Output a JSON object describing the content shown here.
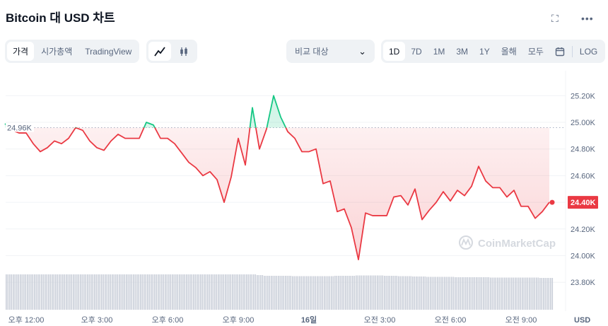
{
  "header": {
    "title": "Bitcoin 대 USD 차트",
    "fullscreen_icon": "fullscreen-icon",
    "more_icon": "more-icon"
  },
  "toolbar": {
    "view_tabs": [
      {
        "label": "가격",
        "active": true
      },
      {
        "label": "시가총액"
      },
      {
        "label": "TradingView"
      }
    ],
    "chart_types": [
      {
        "icon": "line-chart-icon",
        "active": true
      },
      {
        "icon": "candlestick-icon"
      }
    ],
    "compare": {
      "label": "비교 대상"
    },
    "ranges": [
      {
        "label": "1D",
        "active": true
      },
      {
        "label": "7D"
      },
      {
        "label": "1M"
      },
      {
        "label": "3M"
      },
      {
        "label": "1Y"
      },
      {
        "label": "올해"
      },
      {
        "label": "모두"
      }
    ],
    "calendar_icon": "calendar-icon",
    "log_label": "LOG"
  },
  "watermark": "CoinMarketCap",
  "chart_data": {
    "type": "line",
    "currency": "USD",
    "baseline": 24.96,
    "baseline_label": "24.96K",
    "current_label": "24.40K",
    "ylim": [
      23.7,
      25.3
    ],
    "yticks": [
      "25.20K",
      "25.00K",
      "24.80K",
      "24.60K",
      "24.40K",
      "24.20K",
      "24.00K",
      "23.80K"
    ],
    "ytick_values": [
      25.2,
      25.0,
      24.8,
      24.6,
      24.4,
      24.2,
      24.0,
      23.8
    ],
    "xticks": [
      "오후 12:00",
      "오후 3:00",
      "오후 6:00",
      "오후 9:00",
      "16일",
      "오전 3:00",
      "오전 6:00",
      "오전 9:00"
    ],
    "colors": {
      "up": "#16c784",
      "down": "#ea3943",
      "volume": "#c9ced8"
    },
    "grid": true,
    "x": [
      "11:06",
      "11:24",
      "11:42",
      "12:00",
      "12:18",
      "12:36",
      "12:54",
      "13:12",
      "13:30",
      "13:48",
      "14:06",
      "14:24",
      "14:42",
      "15:00",
      "15:18",
      "15:36",
      "15:54",
      "16:12",
      "16:30",
      "16:48",
      "17:06",
      "17:24",
      "17:42",
      "18:00",
      "18:18",
      "18:36",
      "18:54",
      "19:12",
      "19:30",
      "19:48",
      "20:06",
      "20:24",
      "20:42",
      "21:00",
      "21:18",
      "21:36",
      "21:54",
      "22:12",
      "22:30",
      "22:48",
      "23:06",
      "23:24",
      "23:42",
      "00:00",
      "00:18",
      "00:36",
      "00:54",
      "01:12",
      "01:30",
      "01:48",
      "02:06",
      "02:24",
      "02:42",
      "03:00",
      "03:18",
      "03:36",
      "03:54",
      "04:12",
      "04:30",
      "04:48",
      "05:06",
      "05:24",
      "05:42",
      "06:00",
      "06:18",
      "06:36",
      "06:54",
      "07:12",
      "07:30",
      "07:48",
      "08:06",
      "08:24",
      "08:42",
      "09:00",
      "09:18",
      "09:36",
      "09:54",
      "10:12"
    ],
    "values": [
      24.99,
      24.94,
      24.92,
      24.92,
      24.84,
      24.78,
      24.81,
      24.86,
      24.84,
      24.88,
      24.96,
      24.94,
      24.86,
      24.81,
      24.79,
      24.86,
      24.91,
      24.88,
      24.88,
      24.88,
      25.0,
      24.98,
      24.88,
      24.88,
      24.84,
      24.77,
      24.7,
      24.66,
      24.6,
      24.63,
      24.57,
      24.4,
      24.59,
      24.88,
      24.68,
      25.11,
      24.8,
      24.95,
      25.2,
      25.04,
      24.93,
      24.88,
      24.78,
      24.78,
      24.8,
      24.54,
      24.56,
      24.33,
      24.35,
      24.21,
      23.97,
      24.32,
      24.3,
      24.3,
      24.3,
      24.44,
      24.45,
      24.38,
      24.5,
      24.27,
      24.34,
      24.4,
      24.48,
      24.41,
      24.49,
      24.45,
      24.52,
      24.67,
      24.56,
      24.51,
      24.51,
      24.44,
      24.49,
      24.37,
      24.37,
      24.28,
      24.33,
      24.4
    ],
    "volume_relative": [
      1,
      1,
      1,
      1,
      1,
      1,
      1,
      1,
      1,
      1,
      1,
      1,
      1,
      1,
      1,
      1,
      1,
      1,
      1,
      1,
      1,
      1,
      1,
      1,
      1,
      1,
      1,
      1,
      1,
      1,
      1,
      1,
      1,
      1,
      1,
      1,
      0.98,
      0.96,
      0.96,
      0.96,
      0.96,
      0.95,
      0.95,
      0.95,
      0.95,
      0.95,
      0.95,
      0.96,
      0.96,
      0.96,
      0.97,
      0.97,
      0.97,
      0.97,
      0.96,
      0.96,
      0.95,
      0.95,
      0.94,
      0.94,
      0.93,
      0.93,
      0.93,
      0.93,
      0.92,
      0.92,
      0.92,
      0.92,
      0.92,
      0.91,
      0.91,
      0.91,
      0.91,
      0.91,
      0.91,
      0.91,
      0.9,
      0.9
    ]
  }
}
